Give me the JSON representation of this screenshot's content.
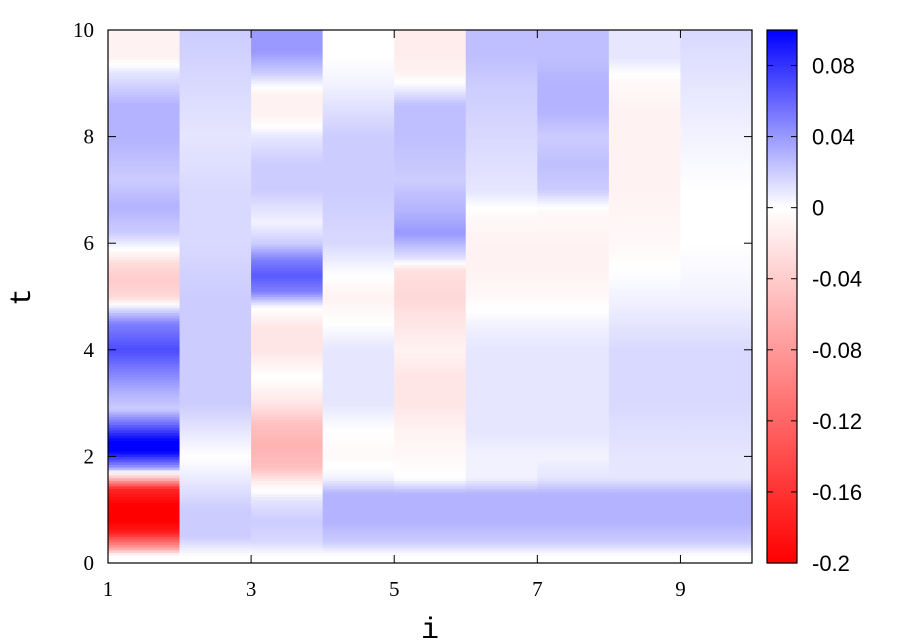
{
  "chart_data": {
    "type": "heatmap",
    "title": "",
    "xlabel": "i",
    "ylabel": "t",
    "xlim": [
      1,
      10
    ],
    "ylim": [
      0,
      10
    ],
    "x_ticks": [
      "1",
      "3",
      "5",
      "7",
      "9"
    ],
    "y_ticks": [
      "0",
      "2",
      "4",
      "6",
      "8",
      "10"
    ],
    "colorbar": {
      "range": [
        -0.2,
        0.1
      ],
      "ticks": [
        "0.08",
        "0.04",
        "0",
        "-0.04",
        "-0.08",
        "-0.12",
        "-0.16",
        "-0.2"
      ],
      "colors": {
        "min": "#ff0000",
        "zero": "#ffffff",
        "max": "#0000ff"
      }
    },
    "columns": [
      1,
      2,
      3,
      4,
      5,
      6,
      7,
      8,
      9
    ],
    "t_profiles": [
      [
        [
          0.15,
          0
        ],
        [
          0.3,
          -0.08
        ],
        [
          0.6,
          -0.18
        ],
        [
          0.8,
          -0.2
        ],
        [
          1.1,
          -0.2
        ],
        [
          1.4,
          -0.17
        ],
        [
          1.6,
          -0.05
        ],
        [
          1.8,
          0.04
        ],
        [
          2.1,
          0.1
        ],
        [
          2.3,
          0.1
        ],
        [
          2.6,
          0.06
        ],
        [
          2.9,
          0.02
        ],
        [
          3.2,
          0.03
        ],
        [
          3.6,
          0.05
        ],
        [
          4.0,
          0.07
        ],
        [
          4.5,
          0.05
        ],
        [
          4.8,
          0.01
        ],
        [
          5.0,
          -0.03
        ],
        [
          5.3,
          -0.04
        ],
        [
          5.6,
          -0.03
        ],
        [
          5.9,
          0
        ],
        [
          6.2,
          0.02
        ],
        [
          6.7,
          0.03
        ],
        [
          7.2,
          0.02
        ],
        [
          8.0,
          0.03
        ],
        [
          8.6,
          0.03
        ],
        [
          9.2,
          0.01
        ],
        [
          9.5,
          -0.01
        ],
        [
          10,
          -0.01
        ]
      ],
      [
        [
          0.15,
          0
        ],
        [
          0.5,
          0.02
        ],
        [
          1.0,
          0.02
        ],
        [
          1.5,
          0.01
        ],
        [
          2.0,
          0
        ],
        [
          2.5,
          0.01
        ],
        [
          3.0,
          0.02
        ],
        [
          4.0,
          0.02
        ],
        [
          5.0,
          0.02
        ],
        [
          6.0,
          0.015
        ],
        [
          7.0,
          0.015
        ],
        [
          8.0,
          0.01
        ],
        [
          9.0,
          0.015
        ],
        [
          10,
          0.02
        ]
      ],
      [
        [
          0.15,
          0
        ],
        [
          0.4,
          0.015
        ],
        [
          0.8,
          0.02
        ],
        [
          1.2,
          0.01
        ],
        [
          1.5,
          -0.01
        ],
        [
          1.8,
          -0.05
        ],
        [
          2.2,
          -0.06
        ],
        [
          2.6,
          -0.05
        ],
        [
          3.0,
          -0.02
        ],
        [
          3.5,
          0
        ],
        [
          4.0,
          -0.02
        ],
        [
          4.4,
          -0.02
        ],
        [
          4.8,
          0
        ],
        [
          5.1,
          0.05
        ],
        [
          5.4,
          0.065
        ],
        [
          5.7,
          0.05
        ],
        [
          6.0,
          0.02
        ],
        [
          6.4,
          0.005
        ],
        [
          7.0,
          0.02
        ],
        [
          7.5,
          0.02
        ],
        [
          8.0,
          0.01
        ],
        [
          8.4,
          -0.01
        ],
        [
          8.8,
          -0.01
        ],
        [
          9.2,
          0.02
        ],
        [
          9.6,
          0.04
        ],
        [
          10,
          0.04
        ]
      ],
      [
        [
          0.15,
          0
        ],
        [
          0.4,
          0.02
        ],
        [
          0.8,
          0.03
        ],
        [
          1.3,
          0.03
        ],
        [
          1.6,
          0.005
        ],
        [
          2.0,
          -0.005
        ],
        [
          2.5,
          0
        ],
        [
          3.0,
          0.01
        ],
        [
          3.5,
          0.01
        ],
        [
          4.0,
          0.01
        ],
        [
          4.5,
          0
        ],
        [
          5.0,
          -0.01
        ],
        [
          5.4,
          0
        ],
        [
          6.0,
          0.015
        ],
        [
          7.0,
          0.02
        ],
        [
          8.0,
          0.02
        ],
        [
          9.0,
          0.005
        ],
        [
          9.5,
          0
        ],
        [
          10,
          0
        ]
      ],
      [
        [
          0.15,
          0
        ],
        [
          0.4,
          0.02
        ],
        [
          0.8,
          0.03
        ],
        [
          1.3,
          0.03
        ],
        [
          1.6,
          0
        ],
        [
          2.0,
          -0.005
        ],
        [
          2.5,
          -0.01
        ],
        [
          3.0,
          -0.02
        ],
        [
          3.5,
          -0.02
        ],
        [
          4.0,
          -0.01
        ],
        [
          4.5,
          -0.02
        ],
        [
          5.0,
          -0.03
        ],
        [
          5.5,
          -0.025
        ],
        [
          5.7,
          0.01
        ],
        [
          6.2,
          0.04
        ],
        [
          6.6,
          0.03
        ],
        [
          7.2,
          0.02
        ],
        [
          8.0,
          0.025
        ],
        [
          8.6,
          0.025
        ],
        [
          9.2,
          -0.01
        ],
        [
          9.6,
          -0.015
        ],
        [
          10,
          -0.015
        ]
      ],
      [
        [
          0.15,
          0
        ],
        [
          0.4,
          0.02
        ],
        [
          0.8,
          0.03
        ],
        [
          1.3,
          0.03
        ],
        [
          1.6,
          0.005
        ],
        [
          2.0,
          0.005
        ],
        [
          2.5,
          0.01
        ],
        [
          3.0,
          0.01
        ],
        [
          3.5,
          0.01
        ],
        [
          4.0,
          0.01
        ],
        [
          4.5,
          0.005
        ],
        [
          5.0,
          -0.005
        ],
        [
          5.5,
          -0.01
        ],
        [
          6.0,
          -0.01
        ],
        [
          6.5,
          -0.005
        ],
        [
          7.0,
          0.01
        ],
        [
          8.0,
          0.015
        ],
        [
          9.0,
          0.02
        ],
        [
          9.5,
          0.025
        ],
        [
          10,
          0.025
        ]
      ],
      [
        [
          0.15,
          0
        ],
        [
          0.4,
          0.02
        ],
        [
          0.8,
          0.03
        ],
        [
          1.3,
          0.03
        ],
        [
          1.6,
          0.01
        ],
        [
          2.0,
          0.005
        ],
        [
          2.5,
          0.01
        ],
        [
          3.0,
          0.01
        ],
        [
          3.5,
          0.01
        ],
        [
          4.0,
          0.01
        ],
        [
          4.5,
          0.005
        ],
        [
          5.0,
          -0.005
        ],
        [
          5.5,
          -0.01
        ],
        [
          6.0,
          -0.01
        ],
        [
          6.6,
          -0.005
        ],
        [
          7.0,
          0.02
        ],
        [
          7.5,
          0.025
        ],
        [
          8.0,
          0.02
        ],
        [
          8.5,
          0.03
        ],
        [
          9.0,
          0.03
        ],
        [
          9.5,
          0.025
        ],
        [
          10,
          0.025
        ]
      ],
      [
        [
          0.15,
          0
        ],
        [
          0.4,
          0.02
        ],
        [
          0.8,
          0.03
        ],
        [
          1.3,
          0.03
        ],
        [
          1.6,
          0.01
        ],
        [
          2.0,
          0.01
        ],
        [
          3.0,
          0.015
        ],
        [
          4.0,
          0.015
        ],
        [
          4.5,
          0.01
        ],
        [
          5.0,
          0.005
        ],
        [
          5.5,
          0
        ],
        [
          6.0,
          -0.005
        ],
        [
          7.0,
          -0.01
        ],
        [
          8.0,
          -0.01
        ],
        [
          8.5,
          -0.01
        ],
        [
          9.0,
          -0.005
        ],
        [
          9.5,
          0.01
        ],
        [
          10,
          0.01
        ]
      ],
      [
        [
          0.15,
          0
        ],
        [
          0.4,
          0.02
        ],
        [
          0.8,
          0.03
        ],
        [
          1.3,
          0.03
        ],
        [
          1.6,
          0.01
        ],
        [
          2.0,
          0.01
        ],
        [
          3.0,
          0.015
        ],
        [
          4.0,
          0.015
        ],
        [
          4.5,
          0.01
        ],
        [
          5.0,
          0.005
        ],
        [
          6.0,
          0
        ],
        [
          7.0,
          0
        ],
        [
          8.0,
          0.005
        ],
        [
          9.0,
          0.01
        ],
        [
          10,
          0.015
        ]
      ]
    ]
  }
}
